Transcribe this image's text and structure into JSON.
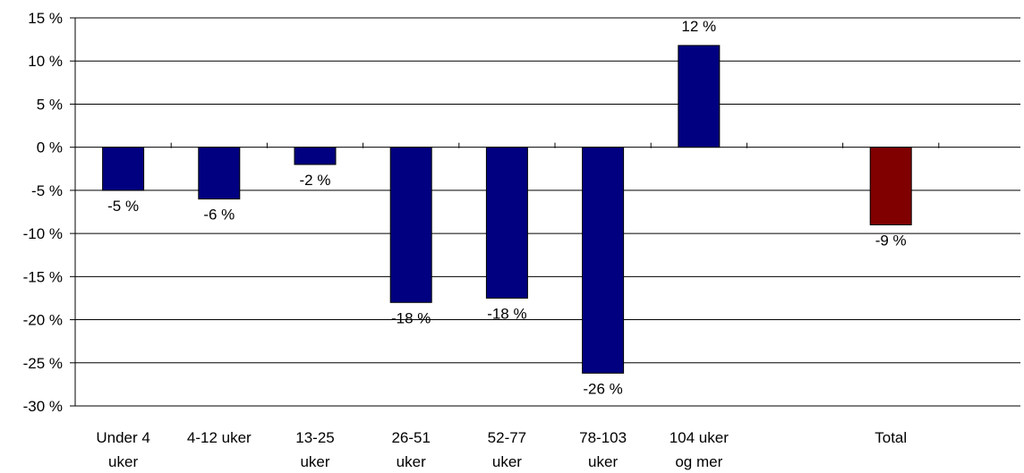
{
  "chart_data": {
    "type": "bar",
    "categories": [
      [
        "Under 4",
        "uker"
      ],
      [
        "4-12 uker"
      ],
      [
        "13-25",
        "uker"
      ],
      [
        "26-51",
        "uker"
      ],
      [
        "52-77",
        "uker"
      ],
      [
        "78-103",
        "uker"
      ],
      [
        "104 uker",
        "og mer"
      ],
      [
        ""
      ],
      [
        "Total"
      ]
    ],
    "values": [
      -5,
      -6,
      -2,
      -18,
      -17.5,
      -26.2,
      11.8,
      null,
      -9
    ],
    "data_labels": [
      "-5 %",
      "-6 %",
      "-2 %",
      "-18 %",
      "-18 %",
      "-26 %",
      "12 %",
      "",
      "-9 %"
    ],
    "bar_colors": [
      "#000080",
      "#000080",
      "#000080",
      "#000080",
      "#000080",
      "#000080",
      "#000080",
      "",
      "#800000"
    ],
    "ylim": [
      -30,
      15
    ],
    "yticks": [
      15,
      10,
      5,
      0,
      -5,
      -10,
      -15,
      -20,
      -25,
      -30
    ],
    "ytick_labels": [
      "15 %",
      "10 %",
      "5 %",
      "0 %",
      "-5 %",
      "-10 %",
      "-15 %",
      "-20 %",
      "-25 %",
      "-30 %"
    ],
    "grid": true,
    "title": "",
    "xlabel": "",
    "ylabel": ""
  }
}
